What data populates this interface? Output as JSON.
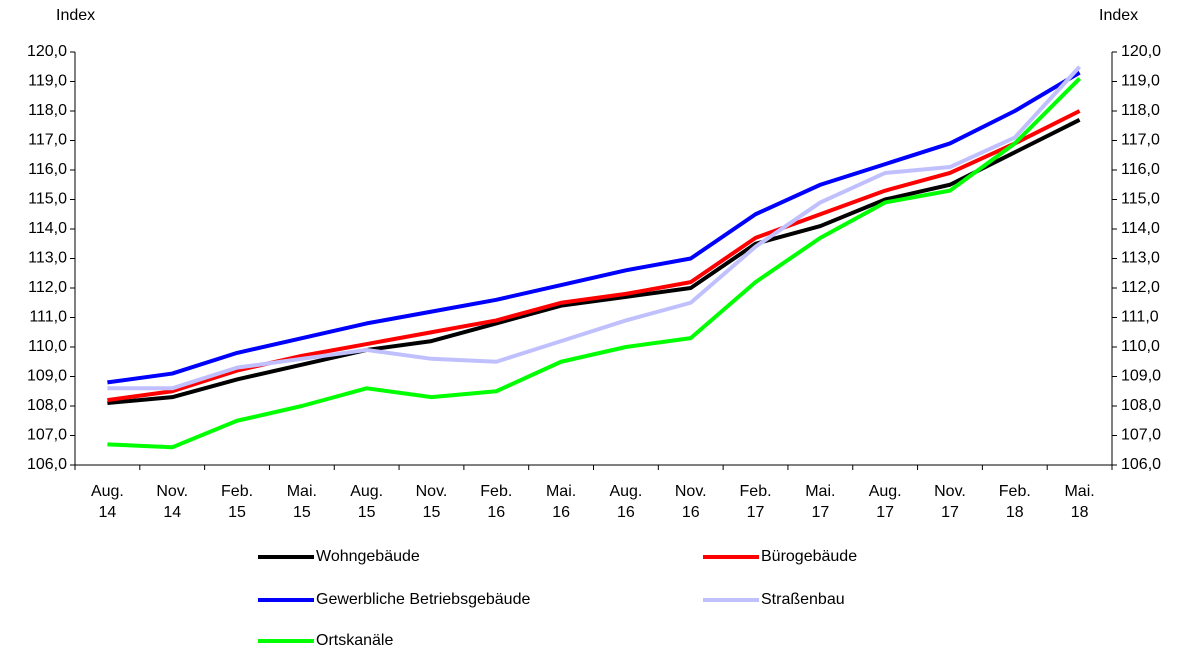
{
  "chart_data": {
    "type": "line",
    "y_label": "Index",
    "y2_label": "Index",
    "categories": [
      "Aug. 14",
      "Nov. 14",
      "Feb. 15",
      "Mai. 15",
      "Aug. 15",
      "Nov. 15",
      "Feb. 16",
      "Mai. 16",
      "Aug. 16",
      "Nov. 16",
      "Feb. 17",
      "Mai. 17",
      "Aug. 17",
      "Nov. 17",
      "Feb. 18",
      "Mai. 18"
    ],
    "ylim": [
      106,
      120
    ],
    "yticks": [
      {
        "value": 106,
        "label": "106,0"
      },
      {
        "value": 107,
        "label": "107,0"
      },
      {
        "value": 108,
        "label": "108,0"
      },
      {
        "value": 109,
        "label": "109,0"
      },
      {
        "value": 110,
        "label": "110,0"
      },
      {
        "value": 111,
        "label": "111,0"
      },
      {
        "value": 112,
        "label": "112,0"
      },
      {
        "value": 113,
        "label": "113,0"
      },
      {
        "value": 114,
        "label": "114,0"
      },
      {
        "value": 115,
        "label": "115,0"
      },
      {
        "value": 116,
        "label": "116,0"
      },
      {
        "value": 117,
        "label": "117,0"
      },
      {
        "value": 118,
        "label": "118,0"
      },
      {
        "value": 119,
        "label": "119,0"
      },
      {
        "value": 120,
        "label": "120,0"
      }
    ],
    "y2lim": [
      106,
      120
    ],
    "y2ticks": [
      {
        "value": 106,
        "label": "106,0"
      },
      {
        "value": 107,
        "label": "107,0"
      },
      {
        "value": 108,
        "label": "108,0"
      },
      {
        "value": 109,
        "label": "109,0"
      },
      {
        "value": 110,
        "label": "110,0"
      },
      {
        "value": 111,
        "label": "111,0"
      },
      {
        "value": 112,
        "label": "112,0"
      },
      {
        "value": 113,
        "label": "113,0"
      },
      {
        "value": 114,
        "label": "114,0"
      },
      {
        "value": 115,
        "label": "115,0"
      },
      {
        "value": 116,
        "label": "116,0"
      },
      {
        "value": 117,
        "label": "117,0"
      },
      {
        "value": 118,
        "label": "118,0"
      },
      {
        "value": 119,
        "label": "119,0"
      },
      {
        "value": 120,
        "label": "120,0"
      }
    ],
    "grid": false,
    "series": [
      {
        "name": "Wohngebäude",
        "color": "#000000",
        "values": [
          108.1,
          108.3,
          108.9,
          109.4,
          109.9,
          110.2,
          110.8,
          111.4,
          111.7,
          112.0,
          113.5,
          114.1,
          115.0,
          115.5,
          116.6,
          117.7
        ]
      },
      {
        "name": "Bürogebäude",
        "color": "#ff0000",
        "values": [
          108.2,
          108.5,
          109.2,
          109.7,
          110.1,
          110.5,
          110.9,
          111.5,
          111.8,
          112.2,
          113.7,
          114.5,
          115.3,
          115.9,
          116.9,
          118.0
        ]
      },
      {
        "name": "Gewerbliche Betriebsgebäude",
        "color": "#0000ff",
        "values": [
          108.8,
          109.1,
          109.8,
          110.3,
          110.8,
          111.2,
          111.6,
          112.1,
          112.6,
          113.0,
          114.5,
          115.5,
          116.2,
          116.9,
          118.0,
          119.3
        ]
      },
      {
        "name": "Straßenbau",
        "color": "#c0c0ff",
        "values": [
          108.6,
          108.6,
          109.3,
          109.6,
          109.9,
          109.6,
          109.5,
          110.2,
          110.9,
          111.5,
          113.4,
          114.9,
          115.9,
          116.1,
          117.1,
          119.5
        ]
      },
      {
        "name": "Ortskanäle",
        "color": "#00ff00",
        "values": [
          106.7,
          106.6,
          107.5,
          108.0,
          108.6,
          108.3,
          108.5,
          109.5,
          110.0,
          110.3,
          112.2,
          113.7,
          114.9,
          115.3,
          116.9,
          119.1
        ]
      }
    ]
  }
}
